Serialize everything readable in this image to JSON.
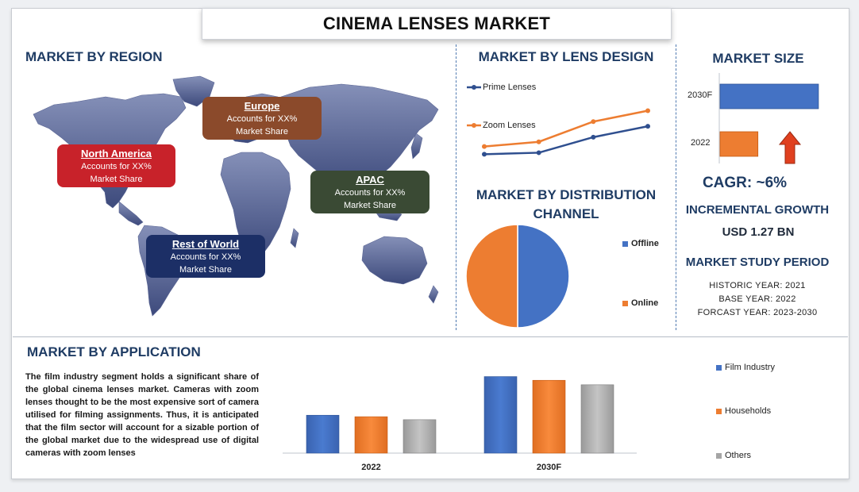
{
  "title": "CINEMA LENSES MARKET",
  "region": {
    "heading": "MARKET BY REGION",
    "boxes": [
      {
        "name": "North America",
        "line1": "Accounts for XX%",
        "line2": "Market Share",
        "color": "#c8222a"
      },
      {
        "name": "Europe",
        "line1": "Accounts for XX%",
        "line2": "Market Share",
        "color": "#8b4a2b"
      },
      {
        "name": "APAC",
        "line1": "Accounts for XX%",
        "line2": "Market Share",
        "color": "#3a4a34"
      },
      {
        "name": "Rest of World",
        "line1": "Accounts for XX%",
        "line2": "Market Share",
        "color": "#1c2f66"
      }
    ]
  },
  "lens_design": {
    "heading": "MARKET BY LENS DESIGN",
    "legend": [
      "Prime Lenses",
      "Zoom Lenses"
    ]
  },
  "distribution": {
    "heading_line1": "MARKET BY DISTRIBUTION",
    "heading_line2": "CHANNEL",
    "legend": [
      "Offline",
      "Online"
    ]
  },
  "market_size": {
    "heading": "MARKET SIZE",
    "bar_labels": [
      "2030F",
      "2022"
    ],
    "cagr": "CAGR:  ~6%",
    "incremental_heading": "INCREMENTAL GROWTH",
    "incremental_value": "USD 1.27 BN",
    "study_heading": "MARKET STUDY PERIOD",
    "historic": "HISTORIC YEAR: 2021",
    "base": "BASE YEAR: 2022",
    "forecast": "FORCAST YEAR: 2023-2030"
  },
  "application": {
    "heading": "MARKET BY APPLICATION",
    "text": "The film industry segment holds a significant share of the global cinema lenses market. Cameras with zoom lenses thought to be the most expensive sort of camera utilised for filming assignments. Thus, it is anticipated that the film sector will account for a sizable portion of the global market due to the widespread use of digital cameras with zoom lenses",
    "legend": [
      "Film Industry",
      "Households",
      "Others"
    ]
  },
  "colors": {
    "blue": "#4472c4",
    "orange": "#ed7d31",
    "gray": "#a5a5a5",
    "heading": "#1f3c64"
  },
  "chart_data": [
    {
      "type": "line",
      "name": "lens_design",
      "x": [
        1,
        2,
        3,
        4
      ],
      "series": [
        {
          "name": "Prime Lenses",
          "values": [
            2.0,
            2.2,
            4.2,
            5.6
          ]
        },
        {
          "name": "Zoom Lenses",
          "values": [
            3.0,
            3.6,
            6.2,
            7.6
          ]
        }
      ],
      "ylim": [
        0,
        10
      ]
    },
    {
      "type": "pie",
      "name": "distribution",
      "categories": [
        "Offline",
        "Online"
      ],
      "values": [
        50,
        50
      ]
    },
    {
      "type": "bar",
      "name": "market_size",
      "orientation": "horizontal",
      "categories": [
        "2030F",
        "2022"
      ],
      "values": [
        2.6,
        1.0
      ],
      "xlim": [
        0,
        3
      ]
    },
    {
      "type": "bar",
      "name": "application",
      "categories": [
        "2022",
        "2030F"
      ],
      "series": [
        {
          "name": "Film Industry",
          "values": [
            51,
            103
          ]
        },
        {
          "name": "Households",
          "values": [
            49,
            98
          ]
        },
        {
          "name": "Others",
          "values": [
            45,
            92
          ]
        }
      ],
      "ylim": [
        0,
        110
      ]
    }
  ]
}
